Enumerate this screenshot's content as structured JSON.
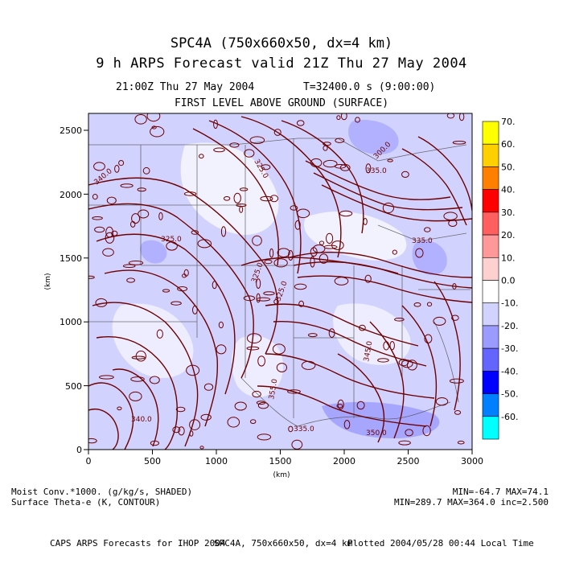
{
  "title": {
    "line1": "SPC4A (750x660x50, dx=4 km)",
    "line2": "9 h ARPS Forecast valid 21Z Thu 27 May 2004"
  },
  "subtitle": {
    "time": "21:00Z Thu 27 May 2004",
    "t_value": "T=32400.0 s (9:00:00)",
    "level": "FIRST LEVEL ABOVE GROUND (SURFACE)"
  },
  "axes": {
    "x_label": "(km)",
    "y_label": "(km)",
    "x_ticks": [
      "0",
      "500",
      "1000",
      "1500",
      "2000",
      "2500",
      "3000"
    ],
    "y_ticks": [
      "0",
      "500",
      "1000",
      "1500",
      "2000",
      "2500"
    ]
  },
  "colorbar": {
    "labels": [
      "70.",
      "60.",
      "50.",
      "40.",
      "30.",
      "20.",
      "10.",
      "0.0",
      "-10.",
      "-20.",
      "-30.",
      "-40.",
      "-50.",
      "-60."
    ],
    "colors": [
      "#ffff00",
      "#ffd000",
      "#ff8000",
      "#ff0000",
      "#ff5f5f",
      "#ff9898",
      "#ffd0d0",
      "#ffffff",
      "#d2d2ff",
      "#9b9bff",
      "#6464ff",
      "#0000ff",
      "#0080ff",
      "#00ffff"
    ]
  },
  "contour_labels": [
    "325.0",
    "325.0",
    "325.0",
    "325.0",
    "340.0",
    "335.0",
    "300.0",
    "335.0",
    "355.0",
    "345.0",
    "340.0",
    "350.0",
    "335.0"
  ],
  "legend": {
    "field1": "Moist Conv.*1000. (g/kg/s, SHADED)",
    "field2": "Surface Theta-e (K, CONTOUR)",
    "stats1": "MIN=-64.7 MAX=74.1",
    "stats2": "MIN=289.7 MAX=364.0 inc=2.500"
  },
  "footer": {
    "left": "CAPS ARPS Forecasts for IHOP 2004",
    "middle": "SPC4A, 750x660x50, dx=4 km",
    "right": "Plotted 2004/05/28 00:44 Local Time"
  },
  "colors": {
    "contour": "#6e0000",
    "map_lines": "#505050",
    "light_shade": "#d2d2ff",
    "medium_shade": "#9b9bff"
  }
}
